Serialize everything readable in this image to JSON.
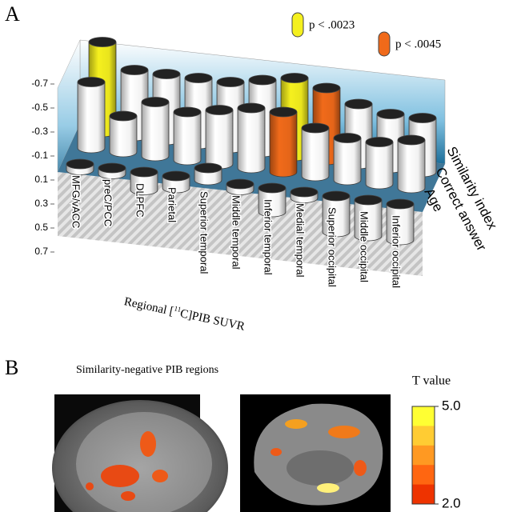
{
  "panel_labels": [
    "A",
    "B"
  ],
  "chart_data": [
    {
      "type": "bar3d",
      "categories": [
        "MFG/vACC",
        "preC/PCC",
        "DLPFC",
        "Parietal",
        "Superior temporal",
        "Middle temporal",
        "Inferior temporal",
        "Medial temporal",
        "Superior occipital",
        "Middle occipital",
        "Inferior occipital"
      ],
      "series": [
        {
          "name": "Similarity index",
          "values": [
            -0.75,
            -0.55,
            -0.55,
            -0.55,
            -0.55,
            -0.6,
            -0.65,
            -0.6,
            -0.5,
            -0.45,
            -0.45
          ],
          "colors": [
            "#f5f01e",
            "#ffffff",
            "#ffffff",
            "#ffffff",
            "#ffffff",
            "#ffffff",
            "#f5f01e",
            "#f06a1a",
            "#ffffff",
            "#ffffff",
            "#ffffff"
          ]
        },
        {
          "name": "Correct answer",
          "values": [
            -0.55,
            -0.3,
            -0.45,
            -0.4,
            -0.45,
            -0.5,
            -0.5,
            -0.4,
            -0.35,
            -0.35,
            -0.4
          ],
          "colors": [
            "#ffffff",
            "#ffffff",
            "#ffffff",
            "#ffffff",
            "#ffffff",
            "#ffffff",
            "#f06a1a",
            "#ffffff",
            "#ffffff",
            "#ffffff",
            "#ffffff"
          ]
        },
        {
          "name": "Age",
          "values": [
            0.05,
            0.05,
            0.15,
            0.1,
            -0.1,
            0.05,
            0.2,
            0.05,
            0.3,
            0.3,
            0.3
          ],
          "colors": [
            "#ffffff",
            "#ffffff",
            "#ffffff",
            "#ffffff",
            "#ffffff",
            "#ffffff",
            "#ffffff",
            "#ffffff",
            "#ffffff",
            "#ffffff",
            "#ffffff"
          ]
        }
      ],
      "ylim": [
        -0.7,
        0.7
      ],
      "yticks": [
        -0.7,
        -0.5,
        -0.3,
        -0.1,
        0.1,
        0.3,
        0.5,
        0.7
      ],
      "y_inverted": true,
      "xlabel": [
        "Regional [",
        "11",
        "C]PIB SUVR"
      ],
      "legend": [
        {
          "label": "p < .0023",
          "color": "#f5f01e"
        },
        {
          "label": "p < .0045",
          "color": "#f06a1a"
        }
      ]
    },
    {
      "type": "colorbar",
      "title": "Similarity-negative PIB regions",
      "label": "T value",
      "clim": [
        2,
        5
      ],
      "ticks": [
        {
          "value": 5,
          "label": "5.0"
        },
        {
          "value": 2,
          "label": "2.0"
        }
      ],
      "colors": [
        "#ffff33",
        "#ffcc33",
        "#ff9922",
        "#ff6611",
        "#ee3300"
      ]
    }
  ]
}
